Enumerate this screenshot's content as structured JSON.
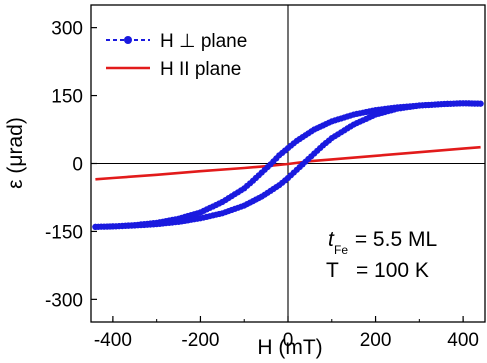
{
  "chart_data": {
    "type": "line",
    "xlabel": "H (mT)",
    "ylabel": "ε (μrad)",
    "xlim": [
      -450,
      450
    ],
    "ylim": [
      -350,
      350
    ],
    "xticks": [
      -400,
      -200,
      0,
      200,
      400
    ],
    "yticks": [
      -300,
      -150,
      0,
      150,
      300
    ],
    "grid": false,
    "legend_position": "top-left",
    "zero_lines": true,
    "series": [
      {
        "name": "H ⊥  plane",
        "color": "#1a1adf",
        "marker": "circle",
        "descending": [
          [
            440,
            132
          ],
          [
            400,
            133
          ],
          [
            350,
            131
          ],
          [
            300,
            128
          ],
          [
            250,
            124
          ],
          [
            200,
            118
          ],
          [
            150,
            108
          ],
          [
            100,
            93
          ],
          [
            60,
            75
          ],
          [
            20,
            50
          ],
          [
            0,
            34
          ],
          [
            -20,
            18
          ],
          [
            -40,
            -2
          ],
          [
            -60,
            -20
          ],
          [
            -80,
            -38
          ],
          [
            -100,
            -55
          ],
          [
            -150,
            -85
          ],
          [
            -200,
            -108
          ],
          [
            -250,
            -122
          ],
          [
            -300,
            -131
          ],
          [
            -350,
            -136
          ],
          [
            -400,
            -139
          ],
          [
            -440,
            -140
          ]
        ],
        "ascending": [
          [
            -440,
            -140
          ],
          [
            -400,
            -139
          ],
          [
            -350,
            -137
          ],
          [
            -300,
            -134
          ],
          [
            -250,
            -129
          ],
          [
            -200,
            -121
          ],
          [
            -150,
            -110
          ],
          [
            -100,
            -93
          ],
          [
            -60,
            -73
          ],
          [
            -20,
            -48
          ],
          [
            0,
            -32
          ],
          [
            20,
            -14
          ],
          [
            40,
            4
          ],
          [
            60,
            22
          ],
          [
            80,
            40
          ],
          [
            100,
            56
          ],
          [
            150,
            86
          ],
          [
            200,
            108
          ],
          [
            250,
            121
          ],
          [
            300,
            128
          ],
          [
            350,
            131
          ],
          [
            400,
            133
          ],
          [
            440,
            132
          ]
        ]
      },
      {
        "name": "H II  plane",
        "color": "#e21b1b",
        "marker": "none",
        "points": [
          [
            -440,
            -35
          ],
          [
            -400,
            -32
          ],
          [
            -300,
            -25
          ],
          [
            -200,
            -17
          ],
          [
            -100,
            -10
          ],
          [
            -50,
            -6
          ],
          [
            0,
            -1
          ],
          [
            50,
            5
          ],
          [
            100,
            9
          ],
          [
            200,
            17
          ],
          [
            300,
            25
          ],
          [
            400,
            33
          ],
          [
            440,
            36
          ]
        ]
      }
    ],
    "annotation": {
      "t_symbol": "t",
      "t_subscript": "Fe",
      "t_value": " = 5.5 ML",
      "T_line": "T   = 100 K"
    }
  }
}
